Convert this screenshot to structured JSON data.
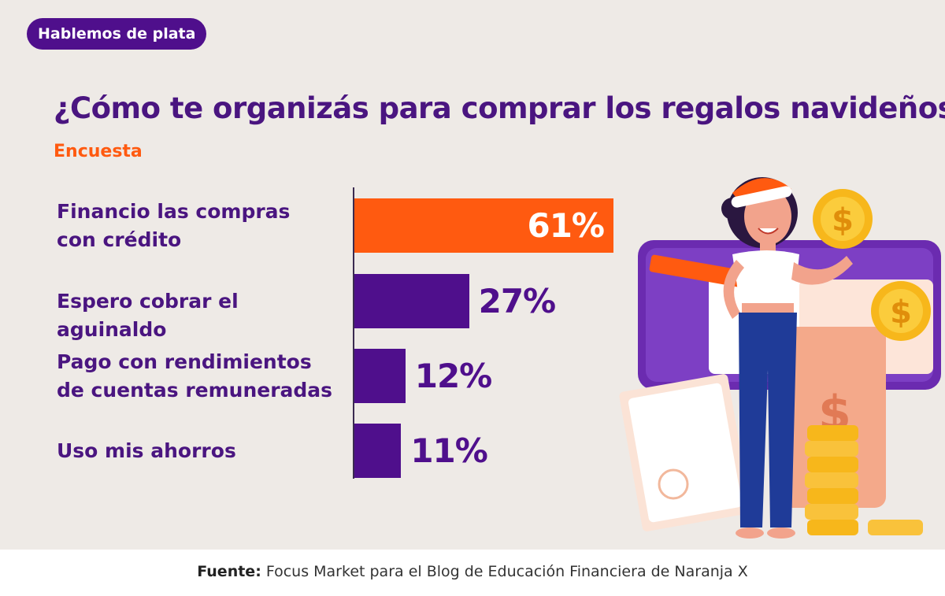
{
  "badge": "Hablemos de plata",
  "footer": {
    "source_label": "Fuente:",
    "source_text": "Focus Market para el Blog de Educación Financiera de Naranja X"
  },
  "colors": {
    "highlight": "#ff5a10",
    "primary": "#4f0f8c",
    "background": "#eeeae6"
  },
  "chart_data": {
    "type": "bar",
    "orientation": "horizontal",
    "title": "¿Cómo te organizás para comprar los regalos navideños?",
    "subtitle": "Encuesta",
    "categories": [
      "Financio las compras\ncon crédito",
      "Espero cobrar el aguinaldo",
      "Pago con rendimientos\nde cuentas remuneradas",
      "Uso mis ahorros"
    ],
    "values": [
      61,
      27,
      12,
      11
    ],
    "value_labels": [
      "61%",
      "27%",
      "12%",
      "11%"
    ],
    "unit": "%",
    "xlim": [
      0,
      100
    ],
    "grid": false,
    "legend": "none"
  },
  "illustration": {
    "icons": [
      "woman-with-santa-hat-icon",
      "wallet-icon",
      "dollar-coin-icon",
      "coin-stack-icon",
      "envelope-icon",
      "money-bag-icon"
    ],
    "coin_symbol": "$"
  }
}
